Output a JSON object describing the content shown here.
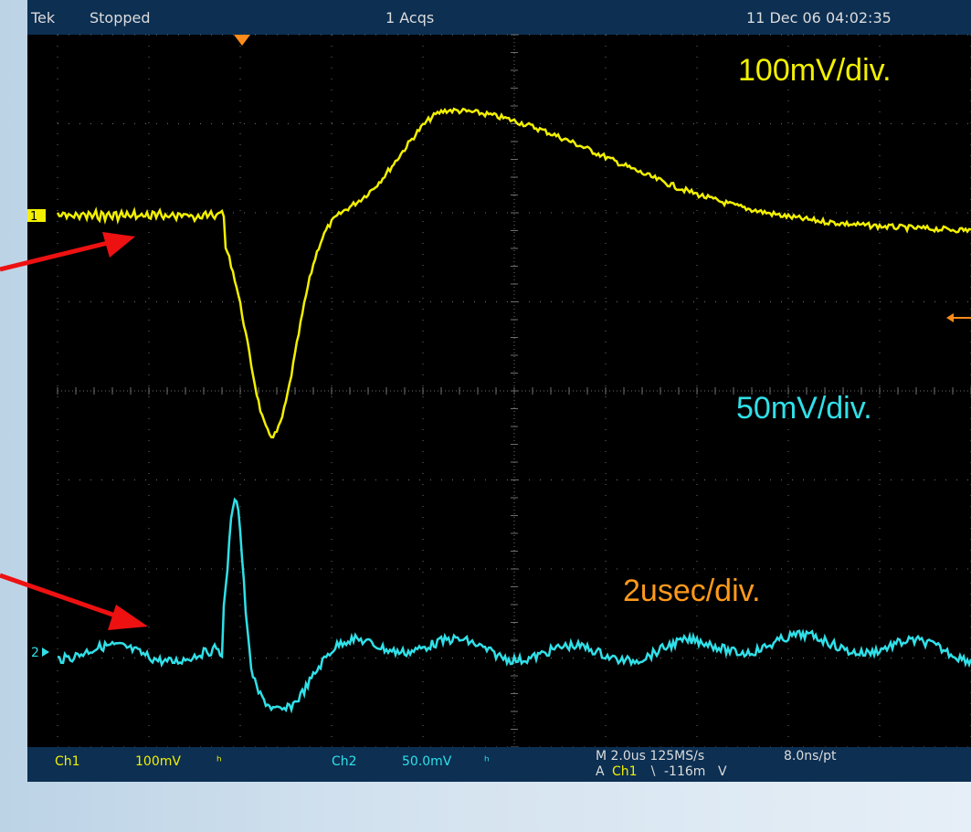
{
  "title_bar": {
    "brand": "Tek",
    "acq_state": "Stopped",
    "acquisitions": "1 Acqs",
    "timestamp": "11 Dec 06 04:02:35"
  },
  "annotations": {
    "ch1_scale": "100mV/div.",
    "ch2_scale": "50mV/div.",
    "timebase": "2usec/div."
  },
  "channel_markers": {
    "ch1": "1",
    "ch2": "2"
  },
  "status_bar": {
    "ch1_label": "Ch1",
    "ch1_scale": "100mV",
    "ch1_coupling": "ʰ",
    "ch2_label": "Ch2",
    "ch2_scale": "50.0mV",
    "ch2_coupling": "ʰ",
    "horizontal": "M 2.0us 125MS/s",
    "resolution": "8.0ns/pt",
    "trigger_prefix": "A",
    "trigger_source": "Ch1",
    "trigger_slope": "∖",
    "trigger_level": "-116m",
    "trigger_unit": "V"
  },
  "colors": {
    "ch1_trace": "#f2f000",
    "ch2_trace": "#30e0e8",
    "timebase_label": "#ff9a1a",
    "trigger_marker": "#ff8c1a",
    "arrows": "#ee1111",
    "grid": "#6e6e6e"
  }
}
